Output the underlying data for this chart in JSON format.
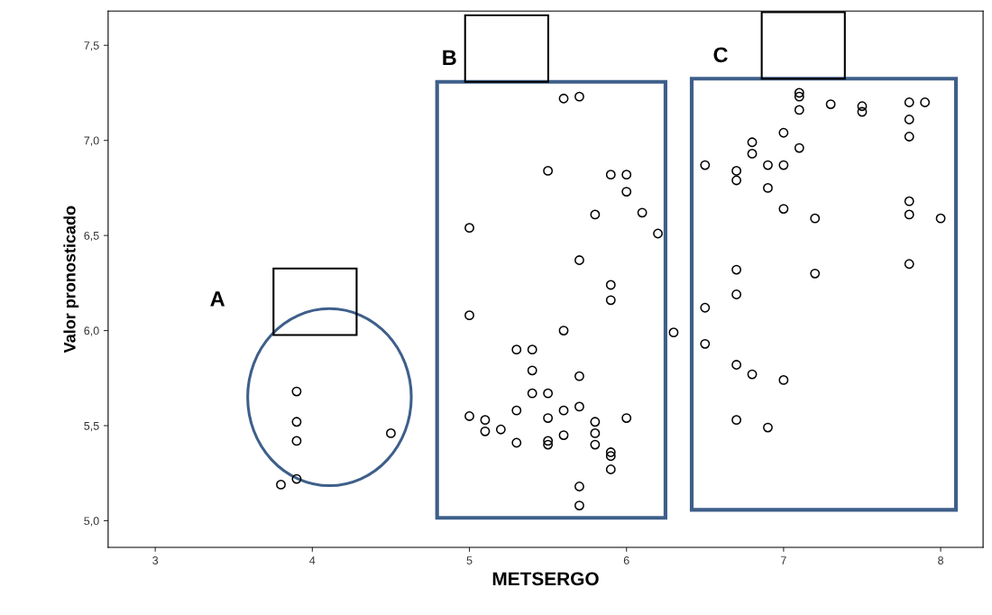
{
  "chart_data": {
    "type": "scatter",
    "xlabel": "METSERGO",
    "ylabel": "Valor pronosticado",
    "xlim": [
      2.7,
      8.27
    ],
    "ylim": [
      4.86,
      7.68
    ],
    "xticks": [
      3,
      4,
      5,
      6,
      7,
      8
    ],
    "yticks": [
      {
        "value": 5.0,
        "label": "5,0"
      },
      {
        "value": 5.5,
        "label": "5,5"
      },
      {
        "value": 6.0,
        "label": "6,0"
      },
      {
        "value": 6.5,
        "label": "6,5"
      },
      {
        "value": 7.0,
        "label": "7,0"
      },
      {
        "value": 7.5,
        "label": "7,5"
      }
    ],
    "marker": "circle",
    "grid": false,
    "legend": false,
    "annotations": [
      "A",
      "B",
      "C"
    ],
    "series": [
      {
        "color": "#000000",
        "x": [
          3.8,
          3.9,
          3.9,
          3.9,
          3.9,
          4.5,
          5.6,
          5.7,
          5.5,
          5.9,
          6.0,
          6.0,
          5.8,
          6.1,
          6.2,
          5.0,
          5.7,
          5.9,
          5.9,
          5.0,
          5.6,
          6.3,
          5.3,
          5.4,
          5.4,
          5.7,
          5.4,
          5.5,
          5.3,
          5.6,
          5.7,
          5.0,
          5.1,
          5.1,
          5.2,
          5.3,
          5.5,
          5.5,
          5.5,
          5.6,
          5.8,
          5.8,
          5.8,
          5.9,
          5.9,
          5.9,
          5.7,
          5.7,
          6.0,
          7.1,
          7.1,
          7.1,
          7.3,
          7.5,
          7.5,
          7.8,
          7.9,
          7.8,
          7.8,
          7.0,
          6.8,
          6.8,
          7.1,
          6.5,
          6.7,
          6.7,
          6.9,
          7.0,
          6.9,
          7.0,
          7.2,
          7.8,
          7.8,
          8.0,
          7.8,
          6.7,
          7.2,
          6.7,
          6.5,
          6.5,
          6.7,
          6.8,
          7.0,
          6.7,
          6.9
        ],
        "values": [
          5.19,
          5.22,
          5.42,
          5.52,
          5.68,
          5.46,
          7.22,
          7.23,
          6.84,
          6.82,
          6.82,
          6.73,
          6.61,
          6.62,
          6.51,
          6.54,
          6.37,
          6.24,
          6.16,
          6.08,
          6.0,
          5.99,
          5.9,
          5.9,
          5.79,
          5.76,
          5.67,
          5.67,
          5.58,
          5.58,
          5.6,
          5.55,
          5.53,
          5.47,
          5.48,
          5.41,
          5.54,
          5.42,
          5.4,
          5.45,
          5.52,
          5.46,
          5.4,
          5.36,
          5.34,
          5.27,
          5.18,
          5.08,
          5.54,
          7.23,
          7.25,
          7.16,
          7.19,
          7.18,
          7.15,
          7.2,
          7.2,
          7.11,
          7.02,
          7.04,
          6.99,
          6.93,
          6.96,
          6.87,
          6.84,
          6.79,
          6.87,
          6.87,
          6.75,
          6.64,
          6.59,
          6.68,
          6.61,
          6.59,
          6.35,
          6.32,
          6.3,
          6.19,
          6.12,
          5.93,
          5.82,
          5.77,
          5.74,
          5.53,
          5.49
        ]
      }
    ]
  }
}
